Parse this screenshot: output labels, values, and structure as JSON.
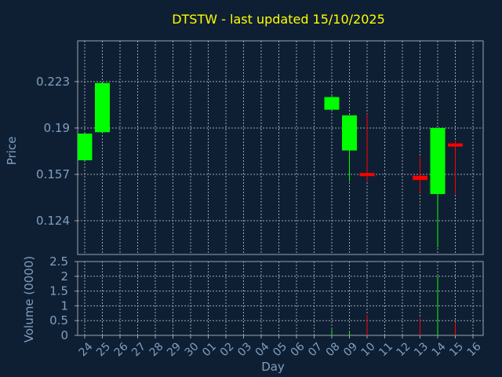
{
  "chart_data": {
    "type": "candlestick",
    "title": "DTSTW - last updated 15/10/2025",
    "xlabel": "Day",
    "price_panel": {
      "ylabel": "Price",
      "yticks": [
        "0.124",
        "0.157",
        "0.19",
        "0.223"
      ],
      "ylim": [
        0.1,
        0.252
      ]
    },
    "volume_panel": {
      "ylabel": "Volume (0000)",
      "yticks": [
        "0",
        "0.5",
        "1",
        "1.5",
        "2",
        "2.5"
      ],
      "ylim": [
        0,
        2.5
      ]
    },
    "x_ticks": [
      "24",
      "25",
      "26",
      "27",
      "28",
      "29",
      "30",
      "01",
      "02",
      "03",
      "04",
      "05",
      "06",
      "07",
      "08",
      "09",
      "10",
      "11",
      "12",
      "13",
      "14",
      "15",
      "16"
    ],
    "candles": [
      {
        "day": "24",
        "open": 0.167,
        "close": 0.186,
        "high": 0.186,
        "low": 0.167,
        "volume": 0
      },
      {
        "day": "25",
        "open": 0.187,
        "close": 0.222,
        "high": 0.222,
        "low": 0.187,
        "volume": 0
      },
      {
        "day": "08",
        "open": 0.203,
        "close": 0.212,
        "high": 0.213,
        "low": 0.203,
        "volume": 0.2
      },
      {
        "day": "09",
        "open": 0.174,
        "close": 0.199,
        "high": 0.199,
        "low": 0.152,
        "volume": 0.15
      },
      {
        "day": "10",
        "open": 0.158,
        "close": 0.156,
        "high": 0.2,
        "low": 0.152,
        "volume": 0.7
      },
      {
        "day": "13",
        "open": 0.156,
        "close": 0.153,
        "high": 0.17,
        "low": 0.144,
        "volume": 0.6
      },
      {
        "day": "14",
        "open": 0.143,
        "close": 0.19,
        "high": 0.19,
        "low": 0.105,
        "volume": 2.0
      },
      {
        "day": "15",
        "open": 0.179,
        "close": 0.177,
        "high": 0.181,
        "low": 0.143,
        "volume": 0.45
      }
    ],
    "colors": {
      "background": "#0f1f33",
      "grid": "#9aa3ad",
      "up": "#00ff00",
      "down": "#ff0000",
      "title": "#ffff00",
      "axis_text": "#7f9fbf"
    },
    "grid": true
  }
}
